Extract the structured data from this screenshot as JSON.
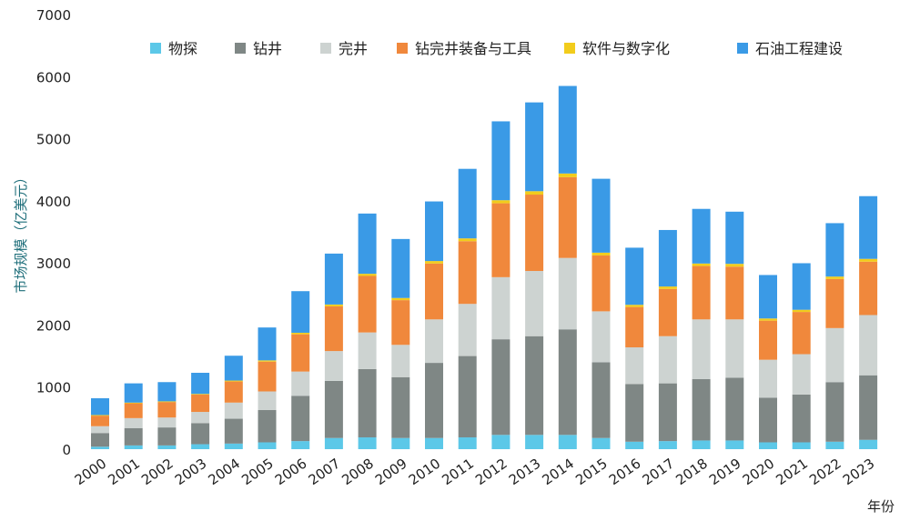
{
  "chart_data": {
    "type": "bar",
    "stacked": true,
    "title": "",
    "xlabel": "年份",
    "ylabel": "市场规模（亿美元）",
    "ylim": [
      0,
      7000
    ],
    "yticks": [
      0,
      1000,
      2000,
      3000,
      4000,
      5000,
      6000,
      7000
    ],
    "grid": false,
    "legend_position": "top",
    "categories": [
      "2000",
      "2001",
      "2002",
      "2003",
      "2004",
      "2005",
      "2006",
      "2007",
      "2008",
      "2009",
      "2010",
      "2011",
      "2012",
      "2013",
      "2014",
      "2015",
      "2016",
      "2017",
      "2018",
      "2019",
      "2020",
      "2021",
      "2022",
      "2023"
    ],
    "series": [
      {
        "name": "物探",
        "color": "#5cc8e8",
        "values": [
          40,
          60,
          60,
          80,
          90,
          110,
          130,
          180,
          190,
          180,
          180,
          190,
          230,
          230,
          230,
          180,
          120,
          130,
          140,
          140,
          110,
          110,
          120,
          150
        ]
      },
      {
        "name": "钻井",
        "color": "#7f8785",
        "values": [
          220,
          280,
          290,
          340,
          400,
          520,
          730,
          920,
          1100,
          980,
          1210,
          1310,
          1540,
          1590,
          1700,
          1220,
          930,
          930,
          990,
          1010,
          720,
          770,
          960,
          1040
        ]
      },
      {
        "name": "完井",
        "color": "#cdd3d1",
        "values": [
          110,
          160,
          160,
          180,
          260,
          300,
          390,
          480,
          590,
          520,
          700,
          840,
          1000,
          1050,
          1150,
          820,
          590,
          760,
          960,
          940,
          610,
          650,
          870,
          970
        ]
      },
      {
        "name": "钻完井装备与工具",
        "color": "#f0883c",
        "values": [
          170,
          240,
          250,
          280,
          340,
          480,
          600,
          720,
          910,
          720,
          900,
          1010,
          1190,
          1230,
          1300,
          900,
          650,
          760,
          860,
          850,
          630,
          680,
          790,
          860
        ]
      },
      {
        "name": "软件与数字化",
        "color": "#f2cc1c",
        "values": [
          10,
          10,
          10,
          10,
          15,
          20,
          25,
          30,
          35,
          35,
          40,
          45,
          50,
          55,
          60,
          45,
          35,
          40,
          40,
          45,
          35,
          35,
          40,
          45
        ]
      },
      {
        "name": "石油工程建设",
        "color": "#3a9ae6",
        "values": [
          270,
          310,
          310,
          340,
          400,
          530,
          670,
          820,
          970,
          950,
          960,
          1120,
          1270,
          1430,
          1410,
          1190,
          920,
          910,
          880,
          840,
          700,
          750,
          860,
          1010
        ]
      }
    ]
  }
}
